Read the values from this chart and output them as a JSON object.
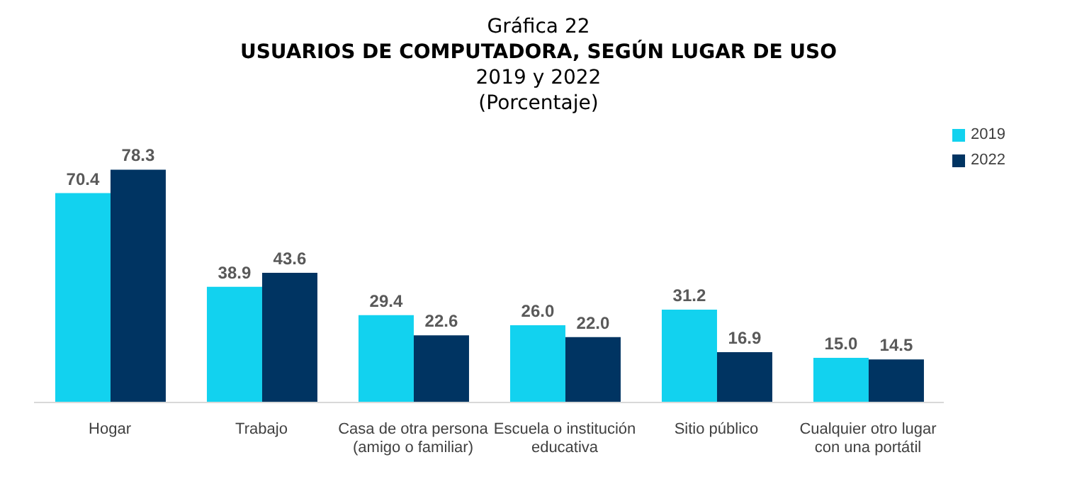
{
  "chart_data": {
    "type": "bar",
    "title": "USUARIOS DE COMPUTADORA, SEGÚN LUGAR DE USO",
    "subtitle": "2019 y 2022\n(Porcentaje)",
    "annotations": [
      "Gráfica 22"
    ],
    "categories": [
      "Hogar",
      "Trabajo",
      "Casa de otra persona\n(amigo o familiar)",
      "Escuela o institución\neducativa",
      "Sitio público",
      "Cualquier otro lugar\ncon una portátil"
    ],
    "series": [
      {
        "name": "2019",
        "color": "#12d2ef",
        "values": [
          70.4,
          38.9,
          29.4,
          26.0,
          31.2,
          15.0
        ],
        "value_labels": [
          "70.4",
          "38.9",
          "29.4",
          "26.0",
          "31.2",
          "15.0"
        ]
      },
      {
        "name": "2022",
        "color": "#003462",
        "values": [
          78.3,
          43.6,
          22.6,
          22.0,
          16.9,
          14.5
        ],
        "value_labels": [
          "78.3",
          "43.6",
          "22.6",
          "22.0",
          "16.9",
          "14.5"
        ]
      }
    ],
    "tick_labels": "x",
    "legend": "top right"
  }
}
